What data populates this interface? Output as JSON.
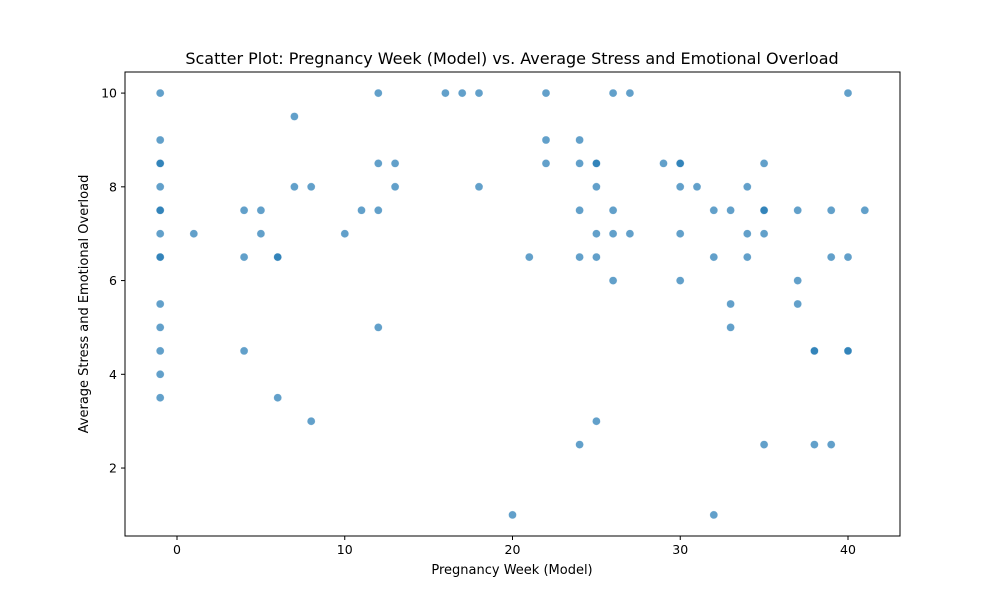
{
  "chart_data": {
    "type": "scatter",
    "title": "Scatter Plot: Pregnancy Week (Model) vs. Average Stress and Emotional Overload",
    "xlabel": "Pregnancy Week (Model)",
    "ylabel": "Average Stress and Emotional Overload",
    "xlim": [
      -3.1,
      43.1
    ],
    "ylim": [
      0.55,
      10.45
    ],
    "xticks": [
      0,
      10,
      20,
      30,
      40
    ],
    "yticks": [
      2,
      4,
      6,
      8,
      10
    ],
    "xtick_labels": [
      "0",
      "10",
      "20",
      "30",
      "40"
    ],
    "ytick_labels": [
      "2",
      "4",
      "6",
      "8",
      "10"
    ],
    "grid": false,
    "marker_color": "#1f77b4",
    "marker_alpha": 0.7,
    "points": [
      [
        -1,
        10
      ],
      [
        -1,
        9
      ],
      [
        -1,
        8.5
      ],
      [
        -1,
        8.5
      ],
      [
        -1,
        8
      ],
      [
        -1,
        7.5
      ],
      [
        -1,
        7.5
      ],
      [
        -1,
        7
      ],
      [
        -1,
        6.5
      ],
      [
        -1,
        6.5
      ],
      [
        -1,
        5.5
      ],
      [
        -1,
        5
      ],
      [
        -1,
        4.5
      ],
      [
        -1,
        4
      ],
      [
        -1,
        3.5
      ],
      [
        1,
        7
      ],
      [
        4,
        7.5
      ],
      [
        4,
        6.5
      ],
      [
        4,
        4.5
      ],
      [
        5,
        7.5
      ],
      [
        5,
        7
      ],
      [
        6,
        6.5
      ],
      [
        6,
        6.5
      ],
      [
        6,
        3.5
      ],
      [
        7,
        9.5
      ],
      [
        7,
        8
      ],
      [
        8,
        8
      ],
      [
        8,
        3
      ],
      [
        10,
        7
      ],
      [
        11,
        7.5
      ],
      [
        12,
        10
      ],
      [
        12,
        8.5
      ],
      [
        12,
        7.5
      ],
      [
        12,
        5
      ],
      [
        13,
        8.5
      ],
      [
        13,
        8
      ],
      [
        16,
        10
      ],
      [
        17,
        10
      ],
      [
        18,
        10
      ],
      [
        18,
        8
      ],
      [
        20,
        1
      ],
      [
        21,
        6.5
      ],
      [
        22,
        10
      ],
      [
        22,
        9
      ],
      [
        22,
        8.5
      ],
      [
        24,
        9
      ],
      [
        24,
        8.5
      ],
      [
        24,
        7.5
      ],
      [
        24,
        6.5
      ],
      [
        24,
        2.5
      ],
      [
        25,
        8.5
      ],
      [
        25,
        8.5
      ],
      [
        25,
        8
      ],
      [
        25,
        7
      ],
      [
        25,
        6.5
      ],
      [
        25,
        3
      ],
      [
        26,
        10
      ],
      [
        26,
        7.5
      ],
      [
        26,
        7
      ],
      [
        26,
        6
      ],
      [
        27,
        10
      ],
      [
        27,
        7
      ],
      [
        29,
        8.5
      ],
      [
        30,
        8.5
      ],
      [
        30,
        8.5
      ],
      [
        30,
        8
      ],
      [
        30,
        7
      ],
      [
        30,
        6
      ],
      [
        31,
        8
      ],
      [
        32,
        7.5
      ],
      [
        32,
        6.5
      ],
      [
        32,
        1
      ],
      [
        33,
        7.5
      ],
      [
        33,
        5.5
      ],
      [
        33,
        5
      ],
      [
        34,
        8
      ],
      [
        34,
        7
      ],
      [
        34,
        6.5
      ],
      [
        35,
        8.5
      ],
      [
        35,
        7.5
      ],
      [
        35,
        7.5
      ],
      [
        35,
        7
      ],
      [
        35,
        2.5
      ],
      [
        37,
        7.5
      ],
      [
        37,
        6
      ],
      [
        37,
        5.5
      ],
      [
        38,
        4.5
      ],
      [
        38,
        4.5
      ],
      [
        38,
        2.5
      ],
      [
        39,
        7.5
      ],
      [
        39,
        6.5
      ],
      [
        39,
        2.5
      ],
      [
        40,
        10
      ],
      [
        40,
        6.5
      ],
      [
        40,
        4.5
      ],
      [
        40,
        4.5
      ],
      [
        41,
        7.5
      ]
    ]
  }
}
